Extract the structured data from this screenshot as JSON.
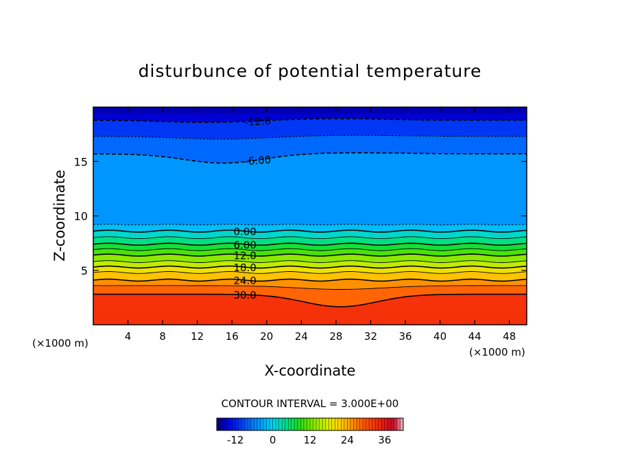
{
  "chart_data": {
    "type": "heatmap",
    "title": "disturbunce of potential temperature",
    "xlabel": "X-coordinate",
    "ylabel": "Z-coordinate",
    "x_unit": "(×1000 m)",
    "xlim": [
      0,
      50
    ],
    "ylim": [
      0,
      20
    ],
    "x_ticks": [
      4,
      8,
      12,
      16,
      20,
      24,
      28,
      32,
      36,
      40,
      44,
      48
    ],
    "y_ticks": [
      5,
      10,
      15
    ],
    "contour_interval_text": "CONTOUR INTERVAL = 3.000E+00",
    "contour_interval": 3,
    "contour_labels": [
      {
        "text": "-12.0",
        "value": -12
      },
      {
        "text": "-6.00",
        "value": -6
      },
      {
        "text": "0.00",
        "value": 0
      },
      {
        "text": "6.00",
        "value": 6
      },
      {
        "text": "12.0",
        "value": 12
      },
      {
        "text": "18.0",
        "value": 18
      },
      {
        "text": "24.0",
        "value": 24
      },
      {
        "text": "30.0",
        "value": 30
      }
    ],
    "colorbar": {
      "range": [
        -18,
        42
      ],
      "ticks": [
        -12,
        0,
        12,
        24,
        36
      ],
      "tick_labels": [
        "-12",
        "0",
        "12",
        "24",
        "36"
      ]
    },
    "contour_levels_drawn": [
      {
        "value": -12,
        "z": 18.8,
        "dashed": true,
        "major": true
      },
      {
        "value": -9,
        "z": 17.3,
        "dashed": true,
        "major": false
      },
      {
        "value": -6,
        "z": 15.7,
        "dashed": true,
        "major": true
      },
      {
        "value": -3,
        "z": 9.2,
        "dashed": true,
        "major": false
      },
      {
        "value": 0,
        "z": 8.6,
        "dashed": false,
        "major": true
      },
      {
        "value": 3,
        "z": 8.0,
        "dashed": false,
        "major": false
      },
      {
        "value": 6,
        "z": 7.4,
        "dashed": false,
        "major": true
      },
      {
        "value": 9,
        "z": 6.9,
        "dashed": false,
        "major": false
      },
      {
        "value": 12,
        "z": 6.4,
        "dashed": false,
        "major": true
      },
      {
        "value": 15,
        "z": 5.8,
        "dashed": false,
        "major": false
      },
      {
        "value": 18,
        "z": 5.3,
        "dashed": false,
        "major": true
      },
      {
        "value": 21,
        "z": 4.8,
        "dashed": false,
        "major": false
      },
      {
        "value": 24,
        "z": 4.1,
        "dashed": false,
        "major": true
      },
      {
        "value": 27,
        "z": 3.6,
        "dashed": false,
        "major": false
      },
      {
        "value": 30,
        "z": 2.8,
        "dashed": false,
        "major": true
      }
    ]
  }
}
